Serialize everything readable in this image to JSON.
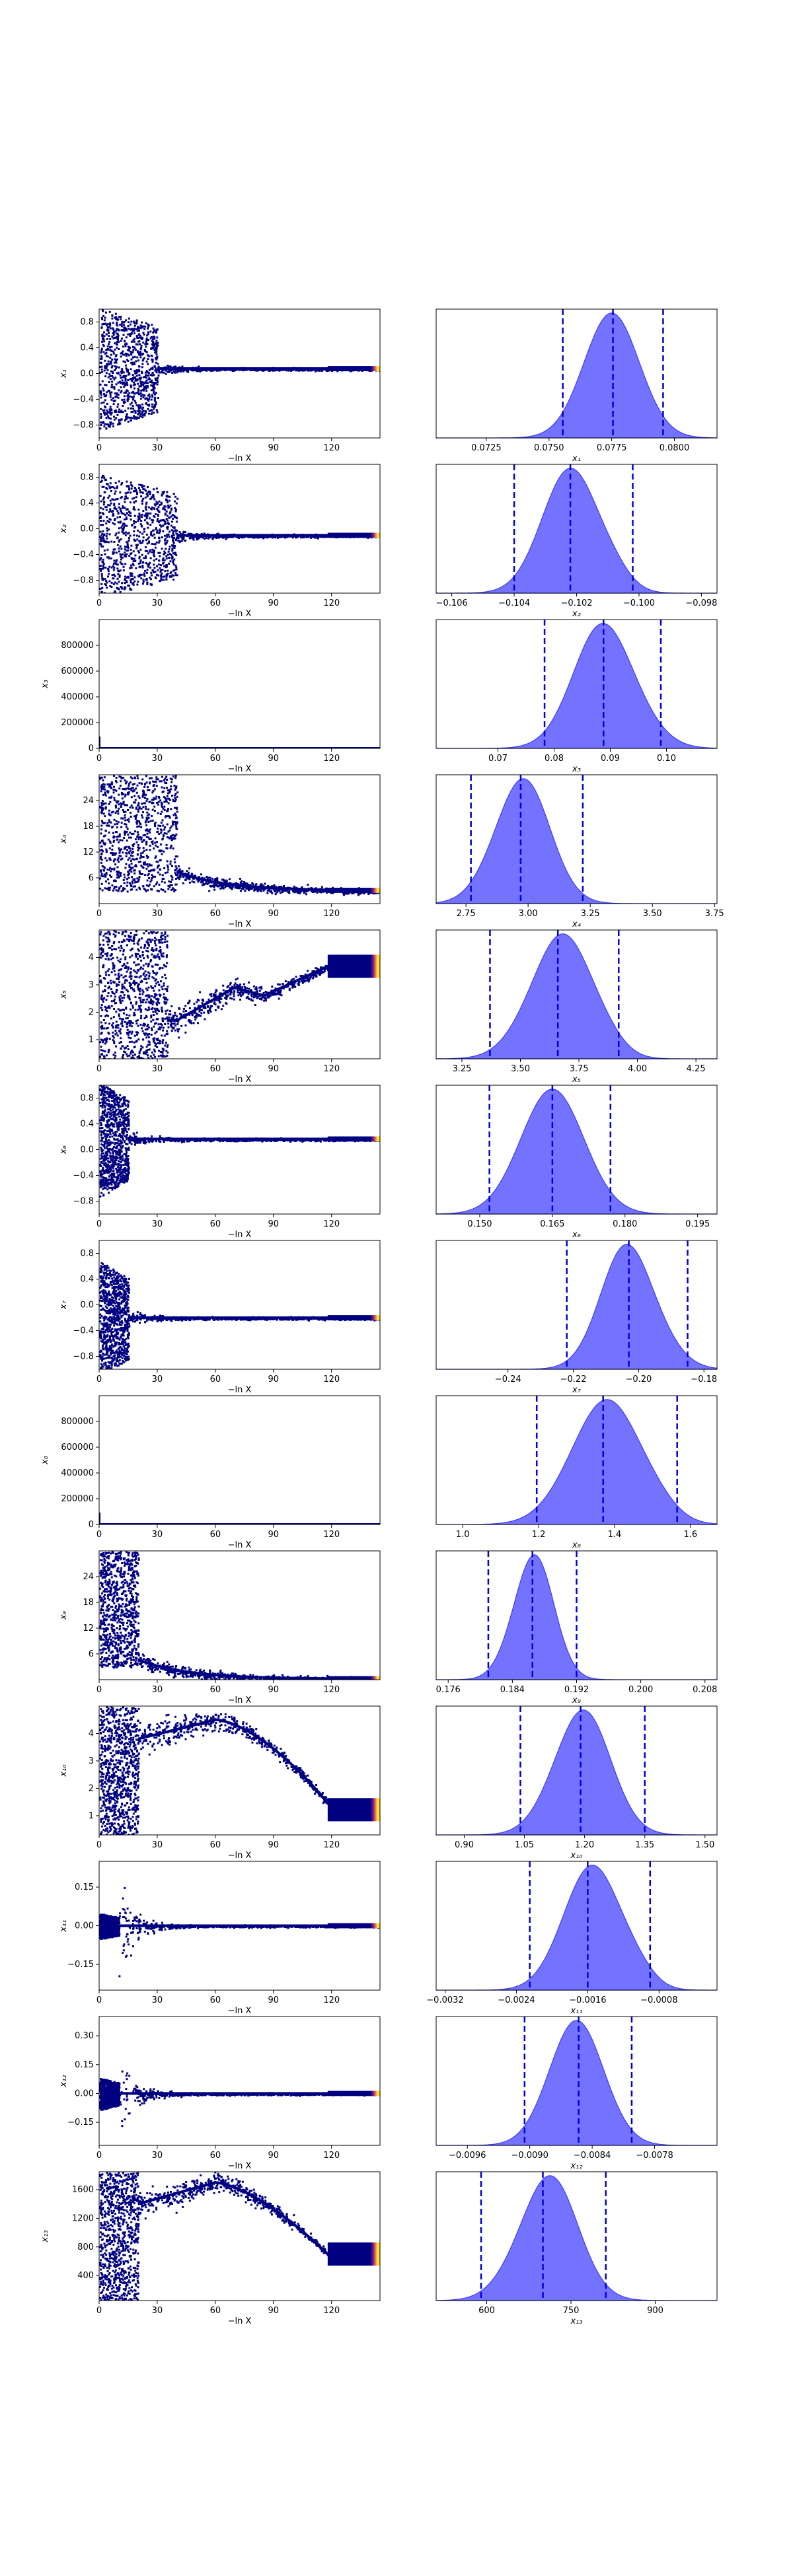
{
  "chart_data": {
    "type": "trace-plot",
    "colors": {
      "trace_cmap": [
        "#000080",
        "#3b0fa8",
        "#a0208a",
        "#e5552a",
        "#f9a723",
        "#fff54a"
      ],
      "posterior_fill": "#5a5aff",
      "posterior_edge": "#3b3bff",
      "quantile_lines": "#0000dd"
    },
    "trace_xlabel": "−ln X",
    "trace_xticks": [
      "0",
      "30",
      "60",
      "90",
      "120"
    ],
    "trace_xlim": [
      0,
      145
    ],
    "params": [
      {
        "ylabel": "x₁",
        "trace": {
          "ylim": [
            -1,
            1
          ],
          "yticks": [
            0.8,
            0.4,
            0.0,
            -0.4,
            -0.8
          ],
          "ytick_labels": [
            "0.8",
            "0.4",
            "0.0",
            "−0.4",
            "−0.8"
          ],
          "noise_end": 30,
          "final": 0.077,
          "spread": 0.95,
          "settle": "linear"
        },
        "posterior": {
          "xlabel": "x₁",
          "xlim": [
            0.0705,
            0.0817
          ],
          "xticks": [
            0.0725,
            0.075,
            0.0775,
            0.08
          ],
          "xtick_labels": [
            "0.0725",
            "0.0750",
            "0.0775",
            "0.0800"
          ],
          "mean": 0.0775,
          "sd": 0.0011,
          "skew": 0,
          "quantiles": [
            0.07555,
            0.07755,
            0.07955
          ]
        }
      },
      {
        "ylabel": "x₂",
        "trace": {
          "ylim": [
            -1,
            1
          ],
          "yticks": [
            0.8,
            0.4,
            0.0,
            -0.4,
            -0.8
          ],
          "ytick_labels": [
            "0.8",
            "0.4",
            "0.0",
            "−0.4",
            "−0.8"
          ],
          "noise_end": 40,
          "final": -0.102,
          "spread": 0.95,
          "settle": "linear"
        },
        "posterior": {
          "xlabel": "x₂",
          "xlim": [
            -0.1065,
            -0.0975
          ],
          "xticks": [
            -0.106,
            -0.104,
            -0.102,
            -0.1,
            -0.098
          ],
          "xtick_labels": [
            "−0.106",
            "−0.104",
            "−0.102",
            "−0.100",
            "−0.098"
          ],
          "mean": -0.1022,
          "sd": 0.0009,
          "skew": 0,
          "quantiles": [
            -0.104,
            -0.1022,
            -0.1002
          ]
        }
      },
      {
        "ylabel": "x₃",
        "trace": {
          "ylim": [
            0,
            1000000
          ],
          "yticks": [
            800000,
            600000,
            400000,
            200000,
            0
          ],
          "ytick_labels": [
            "800000",
            "600000",
            "400000",
            "200000",
            "0"
          ],
          "noise_end": 2,
          "final": 0.09,
          "spread": 0,
          "settle": "flat"
        },
        "posterior": {
          "xlabel": "x₃",
          "xlim": [
            0.059,
            0.109
          ],
          "xticks": [
            0.07,
            0.08,
            0.09,
            0.1
          ],
          "xtick_labels": [
            "0.07",
            "0.08",
            "0.09",
            "0.10"
          ],
          "mean": 0.0895,
          "sd": 0.0055,
          "skew": -0.15,
          "quantiles": [
            0.0783,
            0.0888,
            0.099
          ]
        }
      },
      {
        "ylabel": "x₄",
        "trace": {
          "ylim": [
            0,
            30
          ],
          "yticks": [
            24,
            18,
            12,
            6
          ],
          "ytick_labels": [
            "24",
            "18",
            "12",
            "6"
          ],
          "noise_end": 40,
          "final": 3.0,
          "spread": 14,
          "settle": "decay"
        },
        "posterior": {
          "xlabel": "x₄",
          "xlim": [
            2.63,
            3.76
          ],
          "xticks": [
            2.75,
            3.0,
            3.25,
            3.5,
            3.75
          ],
          "xtick_labels": [
            "2.75",
            "3.00",
            "3.25",
            "3.50",
            "3.75"
          ],
          "mean": 2.97,
          "sd": 0.11,
          "skew": 0.1,
          "quantiles": [
            2.77,
            2.97,
            3.22
          ]
        }
      },
      {
        "ylabel": "x₅",
        "trace": {
          "ylim": [
            0.3,
            5.0
          ],
          "yticks": [
            4,
            3,
            2,
            1
          ],
          "ytick_labels": [
            "4",
            "3",
            "2",
            "1"
          ],
          "noise_end": 35,
          "final": 3.65,
          "spread": 2.0,
          "settle": "wave5"
        },
        "posterior": {
          "xlabel": "x₅",
          "xlim": [
            3.14,
            4.34
          ],
          "xticks": [
            3.25,
            3.5,
            3.75,
            4.0,
            4.25
          ],
          "xtick_labels": [
            "3.25",
            "3.50",
            "3.75",
            "4.00",
            "4.25"
          ],
          "mean": 3.66,
          "sd": 0.13,
          "skew": 0.15,
          "quantiles": [
            3.37,
            3.66,
            3.92
          ]
        }
      },
      {
        "ylabel": "x₆",
        "trace": {
          "ylim": [
            -1,
            1
          ],
          "yticks": [
            0.8,
            0.4,
            0.0,
            -0.4,
            -0.8
          ],
          "ytick_labels": [
            "0.8",
            "0.4",
            "0.0",
            "−0.4",
            "−0.8"
          ],
          "noise_end": 15,
          "final": 0.165,
          "spread": 0.9,
          "settle": "linear"
        },
        "posterior": {
          "xlabel": "x₆",
          "xlim": [
            0.141,
            0.199
          ],
          "xticks": [
            0.15,
            0.165,
            0.18,
            0.195
          ],
          "xtick_labels": [
            "0.150",
            "0.165",
            "0.180",
            "0.195"
          ],
          "mean": 0.165,
          "sd": 0.0065,
          "skew": 0,
          "quantiles": [
            0.152,
            0.165,
            0.177
          ]
        }
      },
      {
        "ylabel": "x₇",
        "trace": {
          "ylim": [
            -1,
            1
          ],
          "yticks": [
            0.8,
            0.4,
            0.0,
            -0.4,
            -0.8
          ],
          "ytick_labels": [
            "0.8",
            "0.4",
            "0.0",
            "−0.4",
            "−0.8"
          ],
          "noise_end": 15,
          "final": -0.2,
          "spread": 0.9,
          "settle": "linear"
        },
        "posterior": {
          "xlabel": "x₇",
          "xlim": [
            -0.262,
            -0.176
          ],
          "xticks": [
            -0.24,
            -0.22,
            -0.2,
            -0.18
          ],
          "xtick_labels": [
            "−0.24",
            "−0.22",
            "−0.20",
            "−0.18"
          ],
          "mean": -0.202,
          "sd": 0.0085,
          "skew": -0.2,
          "quantiles": [
            -0.222,
            -0.203,
            -0.185
          ]
        }
      },
      {
        "ylabel": "x₈",
        "trace": {
          "ylim": [
            0,
            1000000
          ],
          "yticks": [
            800000,
            600000,
            400000,
            200000,
            0
          ],
          "ytick_labels": [
            "800000",
            "600000",
            "400000",
            "200000",
            "0"
          ],
          "noise_end": 2,
          "final": 1.37,
          "spread": 0,
          "settle": "flat"
        },
        "posterior": {
          "xlabel": "x₈",
          "xlim": [
            0.93,
            1.67
          ],
          "xticks": [
            1.0,
            1.2,
            1.4,
            1.6
          ],
          "xtick_labels": [
            "1.0",
            "1.2",
            "1.4",
            "1.6"
          ],
          "mean": 1.37,
          "sd": 0.09,
          "skew": 0.1,
          "quantiles": [
            1.195,
            1.37,
            1.565
          ]
        }
      },
      {
        "ylabel": "x₉",
        "trace": {
          "ylim": [
            0,
            30
          ],
          "yticks": [
            24,
            18,
            12,
            6
          ],
          "ytick_labels": [
            "24",
            "18",
            "12",
            "6"
          ],
          "noise_end": 20,
          "final": 0.19,
          "spread": 14,
          "settle": "decay"
        },
        "posterior": {
          "xlabel": "x₉",
          "xlim": [
            0.1745,
            0.2095
          ],
          "xticks": [
            0.176,
            0.184,
            0.192,
            0.2,
            0.208
          ],
          "xtick_labels": [
            "0.176",
            "0.184",
            "0.192",
            "0.200",
            "0.208"
          ],
          "mean": 0.1865,
          "sd": 0.0025,
          "skew": 0.1,
          "quantiles": [
            0.181,
            0.1865,
            0.192
          ]
        }
      },
      {
        "ylabel": "x₁₀",
        "trace": {
          "ylim": [
            0.3,
            5.0
          ],
          "yticks": [
            4,
            3,
            2,
            1
          ],
          "ytick_labels": [
            "4",
            "3",
            "2",
            "1"
          ],
          "noise_end": 20,
          "final": 1.2,
          "spread": 2.0,
          "settle": "arch10"
        },
        "posterior": {
          "xlabel": "x₁₀",
          "xlim": [
            0.83,
            1.53
          ],
          "xticks": [
            0.9,
            1.05,
            1.2,
            1.35,
            1.5
          ],
          "xtick_labels": [
            "0.90",
            "1.05",
            "1.20",
            "1.35",
            "1.50"
          ],
          "mean": 1.19,
          "sd": 0.07,
          "skew": 0.1,
          "quantiles": [
            1.04,
            1.19,
            1.35
          ]
        }
      },
      {
        "ylabel": "x₁₁",
        "trace": {
          "ylim": [
            -0.25,
            0.25
          ],
          "yticks": [
            0.15,
            0.0,
            -0.15
          ],
          "ytick_labels": [
            "0.15",
            "0.00",
            "−0.15"
          ],
          "noise_end": 10,
          "final": 0.0,
          "spread": 0.2,
          "settle": "funnel"
        },
        "posterior": {
          "xlabel": "x₁₁",
          "xlim": [
            -0.0033,
            -0.00015
          ],
          "xticks": [
            -0.0032,
            -0.0024,
            -0.0016,
            -0.0008
          ],
          "xtick_labels": [
            "−0.0032",
            "−0.0024",
            "−0.0016",
            "−0.0008"
          ],
          "mean": -0.00155,
          "sd": 0.00032,
          "skew": 0,
          "quantiles": [
            -0.00225,
            -0.0016,
            -0.0009
          ]
        }
      },
      {
        "ylabel": "x₁₂",
        "trace": {
          "ylim": [
            -0.27,
            0.4
          ],
          "yticks": [
            0.3,
            0.15,
            0.0,
            -0.15
          ],
          "ytick_labels": [
            "0.30",
            "0.15",
            "0.00",
            "−0.15"
          ],
          "noise_end": 10,
          "final": 0.0,
          "spread": 0.25,
          "settle": "funnel"
        },
        "posterior": {
          "xlabel": "x₁₂",
          "xlim": [
            -0.0099,
            -0.0072
          ],
          "xticks": [
            -0.0096,
            -0.009,
            -0.0084,
            -0.0078
          ],
          "xtick_labels": [
            "−0.0096",
            "−0.0090",
            "−0.0084",
            "−0.0078"
          ],
          "mean": -0.00855,
          "sd": 0.00026,
          "skew": 0,
          "quantiles": [
            -0.00905,
            -0.00853,
            -0.00802
          ]
        }
      },
      {
        "ylabel": "x₁₃",
        "trace": {
          "ylim": [
            50,
            1850
          ],
          "yticks": [
            1600,
            1200,
            800,
            400
          ],
          "ytick_labels": [
            "1600",
            "1200",
            "800",
            "400"
          ],
          "noise_end": 20,
          "final": 700,
          "spread": 700,
          "settle": "arch13"
        },
        "posterior": {
          "xlabel": "x₁₃",
          "xlim": [
            510,
            1010
          ],
          "xticks": [
            600,
            750,
            900
          ],
          "xtick_labels": [
            "600",
            "750",
            "900"
          ],
          "mean": 705,
          "sd": 52,
          "skew": 0.15,
          "quantiles": [
            590,
            700,
            812
          ]
        }
      }
    ]
  }
}
